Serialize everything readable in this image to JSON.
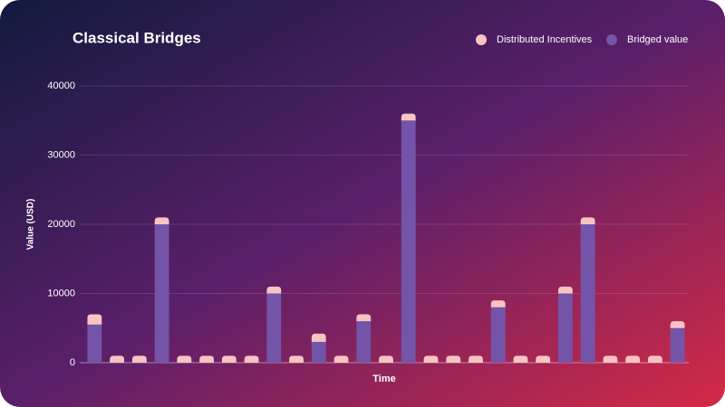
{
  "chart_data": {
    "type": "bar",
    "stacked": true,
    "title": "Classical Bridges",
    "x_label": "Time",
    "y_label": "Value (USD)",
    "categories": [
      null,
      null,
      null,
      null,
      null,
      null,
      null,
      null,
      null,
      null,
      null,
      null,
      null,
      null,
      null,
      null,
      null,
      null,
      null,
      null,
      null,
      null,
      null,
      null,
      null,
      null,
      null
    ],
    "series": [
      {
        "name": "Distributed Incentives",
        "color": "#f8c3c3",
        "values": [
          1500,
          1000,
          1000,
          1000,
          1000,
          1000,
          1000,
          1000,
          1000,
          1000,
          1200,
          1000,
          1000,
          1000,
          1000,
          1000,
          1000,
          1000,
          1000,
          1000,
          1000,
          1000,
          1000,
          1000,
          1000,
          1000,
          1000
        ]
      },
      {
        "name": "Bridged value",
        "color": "#7454a8",
        "values": [
          5500,
          0,
          0,
          20000,
          0,
          0,
          0,
          0,
          10000,
          0,
          3000,
          0,
          6000,
          0,
          35000,
          0,
          0,
          0,
          8000,
          0,
          0,
          10000,
          20000,
          0,
          0,
          0,
          5000
        ]
      }
    ],
    "ylim": [
      0,
      40000
    ],
    "yticks": [
      0,
      10000,
      20000,
      30000,
      40000
    ],
    "grid": true,
    "legend": "top-right"
  }
}
